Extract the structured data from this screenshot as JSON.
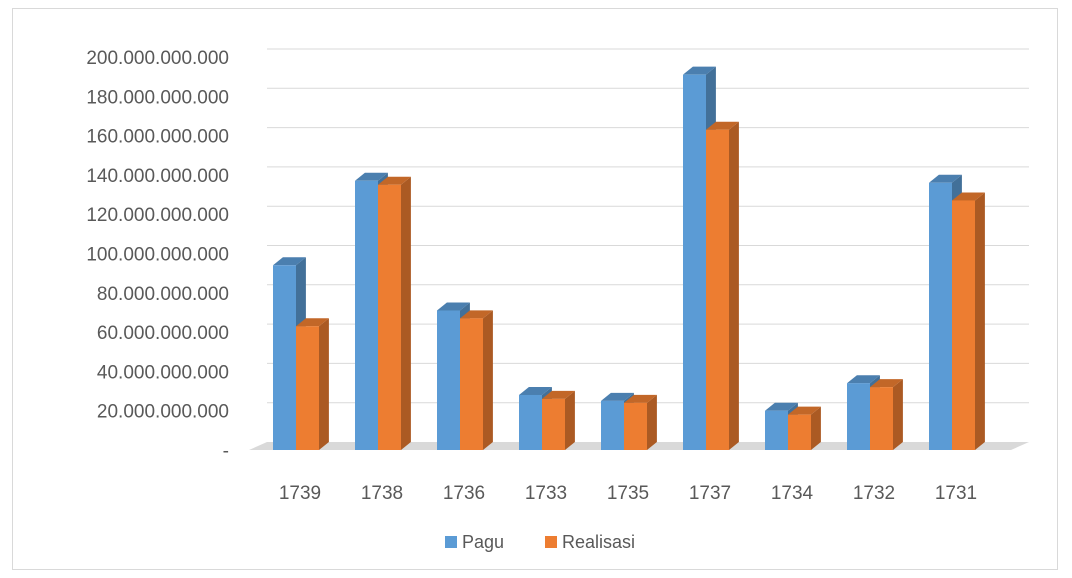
{
  "chart_data": {
    "type": "bar",
    "title": "",
    "xlabel": "",
    "ylabel": "",
    "categories": [
      "1739",
      "1738",
      "1736",
      "1733",
      "1735",
      "1737",
      "1734",
      "1732",
      "1731"
    ],
    "ylim": [
      0,
      200000000000
    ],
    "yticks": [
      0,
      20000000000,
      40000000000,
      60000000000,
      80000000000,
      100000000000,
      120000000000,
      140000000000,
      160000000000,
      180000000000,
      200000000000
    ],
    "ytick_labels": [
      "-",
      "20.000.000.000",
      "40.000.000.000",
      "60.000.000.000",
      "80.000.000.000",
      "100.000.000.000",
      "120.000.000.000",
      "140.000.000.000",
      "160.000.000.000",
      "180.000.000.000",
      "200.000.000.000"
    ],
    "grid": true,
    "legend_position": "bottom",
    "series": [
      {
        "name": "Pagu",
        "color": "#5B9BD5",
        "values": [
          94000000000,
          137000000000,
          71000000000,
          28000000000,
          25000000000,
          191000000000,
          20000000000,
          34000000000,
          136000000000
        ]
      },
      {
        "name": "Realisasi",
        "color": "#ED7D31",
        "values": [
          63000000000,
          135000000000,
          67000000000,
          26000000000,
          24000000000,
          163000000000,
          18000000000,
          32000000000,
          127000000000
        ]
      }
    ]
  }
}
